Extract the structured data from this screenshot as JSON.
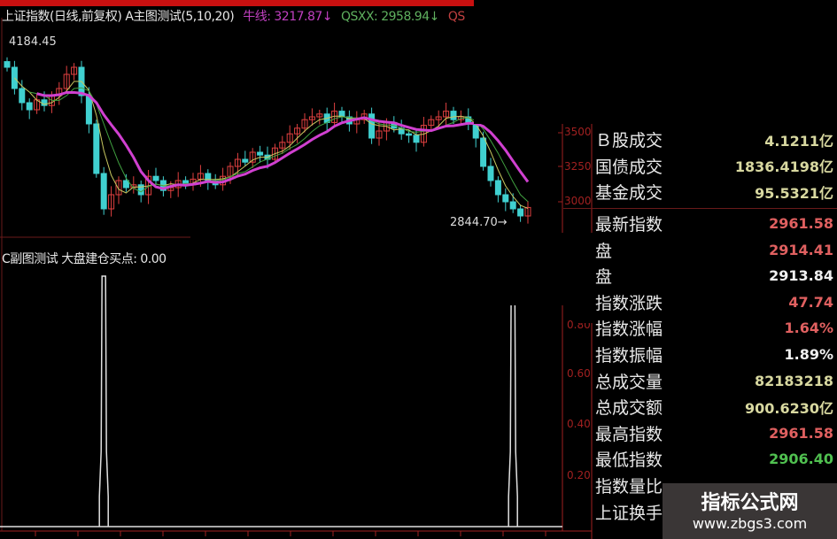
{
  "header": {
    "symbol_title": "上证指数(日线,前复权) A主图测试(5,10,20)",
    "bull_line_label": "牛线: 3217.87↓",
    "qsxx_label": "QSXX: 2958.94↓",
    "qs_cut": "QS"
  },
  "sub_header": {
    "title": "C副图测试  大盘建仓买点: 0.00"
  },
  "colors": {
    "up": "#e04040",
    "down": "#40d0d0",
    "ma_long": "#d040d0",
    "ma_short": "#c8c860",
    "ma_mid": "#40a040",
    "axis": "#a02020",
    "spike": "#e0e0e0"
  },
  "chart_data": [
    {
      "type": "candlestick",
      "title": "上证指数(日线,前复权)",
      "y_axis_ticks": [
        "3500",
        "3250",
        "3000"
      ],
      "annotations": {
        "high": "4184.45",
        "low": "2844.70"
      },
      "closes": [
        3950,
        3800,
        3700,
        3650,
        3720,
        3680,
        3750,
        3800,
        3900,
        3950,
        3750,
        3550,
        3200,
        2950,
        3050,
        3150,
        3100,
        3120,
        3050,
        3180,
        3150,
        3080,
        3100,
        3150,
        3120,
        3160,
        3200,
        3150,
        3120,
        3180,
        3250,
        3300,
        3280,
        3350,
        3330,
        3300,
        3380,
        3420,
        3480,
        3520,
        3580,
        3600,
        3620,
        3560,
        3640,
        3600,
        3550,
        3580,
        3620,
        3450,
        3500,
        3560,
        3520,
        3480,
        3470,
        3420,
        3540,
        3580,
        3600,
        3640,
        3580,
        3600,
        3560,
        3450,
        3250,
        3150,
        3050,
        3000,
        2950,
        2900,
        2960
      ],
      "ylim": [
        2800,
        4250
      ]
    },
    {
      "type": "bar",
      "title": "C副图测试 大盘建仓买点",
      "y_axis_ticks": [
        "0.80",
        "0.60",
        "0.40",
        "0.20"
      ],
      "spike_indices": [
        13,
        68
      ],
      "spike_value": 1.0,
      "ylim": [
        0,
        1
      ]
    }
  ],
  "panel": {
    "top_rows": [
      {
        "label": "Ｂ股成交",
        "value": "4.1211亿",
        "color": "#d8d8a0"
      },
      {
        "label": "国债成交",
        "value": "1836.4198亿",
        "color": "#d8d8a0"
      },
      {
        "label": "基金成交",
        "value": "95.5321亿",
        "color": "#d8d8a0"
      }
    ],
    "rows": [
      {
        "label": "最新指数",
        "value": "2961.58",
        "color": "#e06060"
      },
      {
        "label": "盘",
        "value": "2914.41",
        "color": "#e06060"
      },
      {
        "label": "盘",
        "value": "2913.84",
        "color": "#f0f0f0"
      },
      {
        "label": "指数涨跌",
        "value": "47.74",
        "color": "#e06060"
      },
      {
        "label": "指数涨幅",
        "value": "1.64%",
        "color": "#e06060"
      },
      {
        "label": "指数振幅",
        "value": "1.89%",
        "color": "#f0f0f0"
      },
      {
        "label": "总成交量",
        "value": "82183218",
        "color": "#d8d8a0"
      },
      {
        "label": "总成交额",
        "value": "900.6230亿",
        "color": "#d8d8a0"
      },
      {
        "label": "最高指数",
        "value": "2961.58",
        "color": "#e06060"
      },
      {
        "label": "最低指数",
        "value": "2906.40",
        "color": "#50c050"
      },
      {
        "label": "指数量比",
        "value": "",
        "color": "#f0f0f0"
      },
      {
        "label": "上证换手",
        "value": "",
        "color": "#f0f0f0"
      }
    ]
  },
  "watermark": {
    "name": "指标公式网",
    "url": "www.zbgs3.com"
  }
}
